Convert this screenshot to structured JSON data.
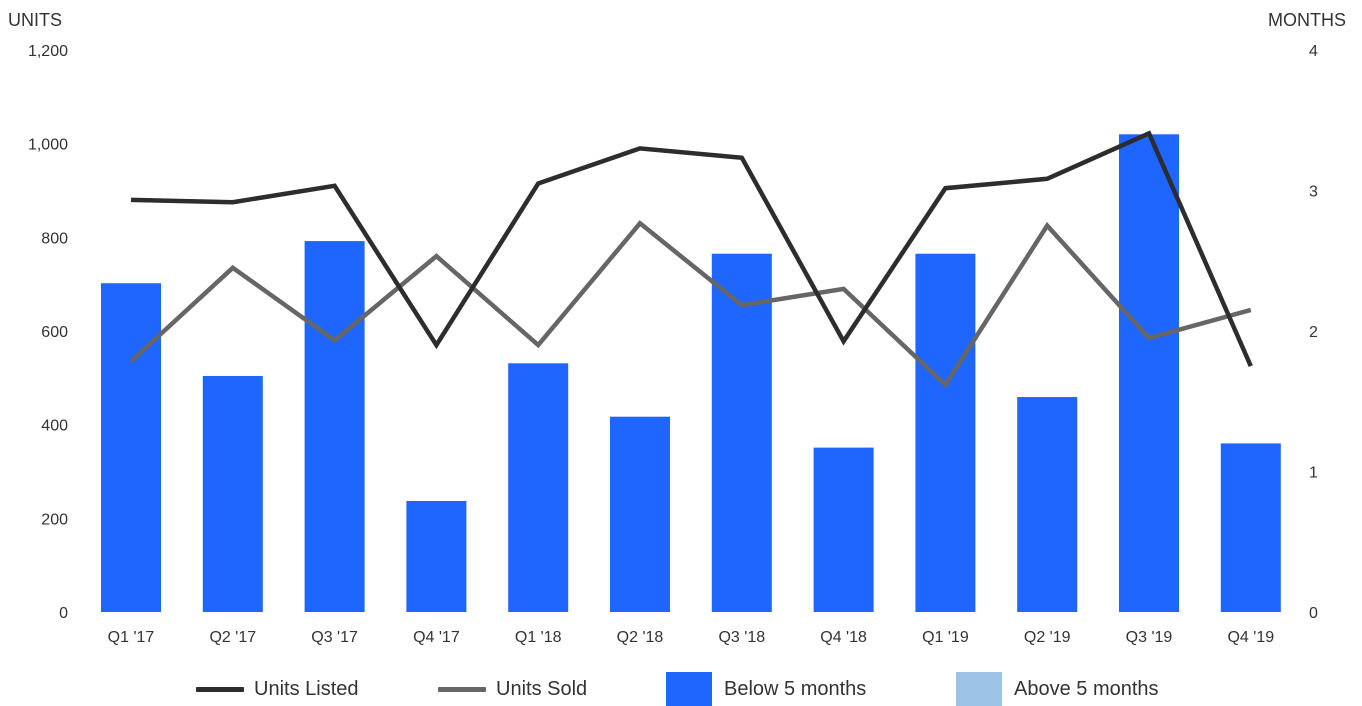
{
  "chart_data": {
    "type": "bar",
    "left_axis_title": "UNITS",
    "right_axis_title": "MONTHS",
    "categories": [
      "Q1 '17",
      "Q2 '17",
      "Q3 '17",
      "Q4 '17",
      "Q1 '18",
      "Q2 '18",
      "Q3 '18",
      "Q4 '18",
      "Q1 '19",
      "Q2 '19",
      "Q3 '19",
      "Q4 '19"
    ],
    "left_ticks": [
      "0",
      "200",
      "400",
      "600",
      "800",
      "1,000",
      "1,200"
    ],
    "right_ticks": [
      "0",
      "1",
      "2",
      "3",
      "4"
    ],
    "ylim_left": [
      0,
      1200
    ],
    "ylim_right": [
      0,
      4
    ],
    "bars": {
      "name": "Below 5 months",
      "axis": "right",
      "values": [
        2.34,
        1.68,
        2.64,
        0.79,
        1.77,
        1.39,
        2.55,
        1.17,
        2.55,
        1.53,
        3.4,
        1.2
      ]
    },
    "series": [
      {
        "name": "Units Listed",
        "type": "line",
        "axis": "left",
        "values": [
          880,
          875,
          910,
          570,
          915,
          990,
          970,
          578,
          905,
          925,
          1022,
          525
        ]
      },
      {
        "name": "Units Sold",
        "type": "line",
        "axis": "left",
        "values": [
          535,
          735,
          580,
          760,
          570,
          830,
          655,
          690,
          485,
          825,
          585,
          645
        ]
      }
    ],
    "legend": [
      {
        "label": "Units Listed",
        "kind": "line",
        "color": "#2b2d2f"
      },
      {
        "label": "Units Sold",
        "kind": "line",
        "color": "#666666"
      },
      {
        "label": "Below 5 months",
        "kind": "bar",
        "color": "#1e66ff"
      },
      {
        "label": "Above 5 months",
        "kind": "bar",
        "color": "#9dc3e6"
      }
    ],
    "legend_position": "bottom",
    "grid": false,
    "colors": {
      "bar": "#1e66ff",
      "units_listed": "#2b2d2f",
      "units_sold": "#666666",
      "above": "#9dc3e6"
    }
  }
}
